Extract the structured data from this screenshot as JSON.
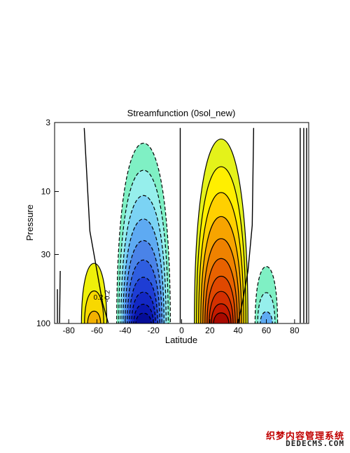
{
  "chart_data": {
    "type": "contour",
    "title": "Streamfunction (0sol_new)",
    "xlabel": "Latitude",
    "ylabel": "Pressure",
    "xlim": [
      -90,
      90
    ],
    "ylim": [
      100,
      3
    ],
    "yscale": "log",
    "x_ticks": [
      -80,
      -60,
      -40,
      -20,
      0,
      20,
      40,
      60,
      80
    ],
    "x_tick_labels": [
      "-80",
      "-60",
      "-40",
      "-20",
      "0",
      "20",
      "40",
      "60",
      "80"
    ],
    "y_ticks": [
      3,
      10,
      30,
      100
    ],
    "y_tick_labels": [
      "3",
      "10",
      "30",
      "100"
    ],
    "contour_labels": [
      {
        "text": "0.2",
        "lat": -59,
        "p": 66
      },
      {
        "text": "-0.2",
        "lat": -51,
        "p": 62
      }
    ],
    "cells": [
      {
        "name": "southern-polar-cell",
        "sign": "positive",
        "center_lat": -62,
        "top_p": 35,
        "levels": 3,
        "colors": [
          "#eef00a",
          "#f8d800",
          "#f2b000"
        ]
      },
      {
        "name": "southern-hadley-cell",
        "sign": "negative",
        "center_lat": -27,
        "top_p": 4.3,
        "levels": 10,
        "colors": [
          "#7ff0c4",
          "#96efec",
          "#7bd3f4",
          "#5eaaf2",
          "#4a83e8",
          "#2f5ee0",
          "#1e3dd4",
          "#1328c4",
          "#0a18b0",
          "#050d98"
        ]
      },
      {
        "name": "northern-hadley-cell",
        "sign": "positive",
        "center_lat": 28,
        "top_p": 4.0,
        "levels": 10,
        "colors": [
          "#e4f21a",
          "#ffef00",
          "#ffd000",
          "#f7a400",
          "#ef8200",
          "#e86200",
          "#e04800",
          "#d43000",
          "#c41a00",
          "#a80a00"
        ]
      },
      {
        "name": "northern-polar-cell",
        "sign": "negative",
        "center_lat": 60,
        "top_p": 37,
        "levels": 3,
        "colors": [
          "#7ff0c4",
          "#96efec",
          "#5eaaf2"
        ]
      }
    ]
  },
  "watermark": {
    "line1": "织梦内容管理系统",
    "line2": "DEDECMS.COM"
  }
}
